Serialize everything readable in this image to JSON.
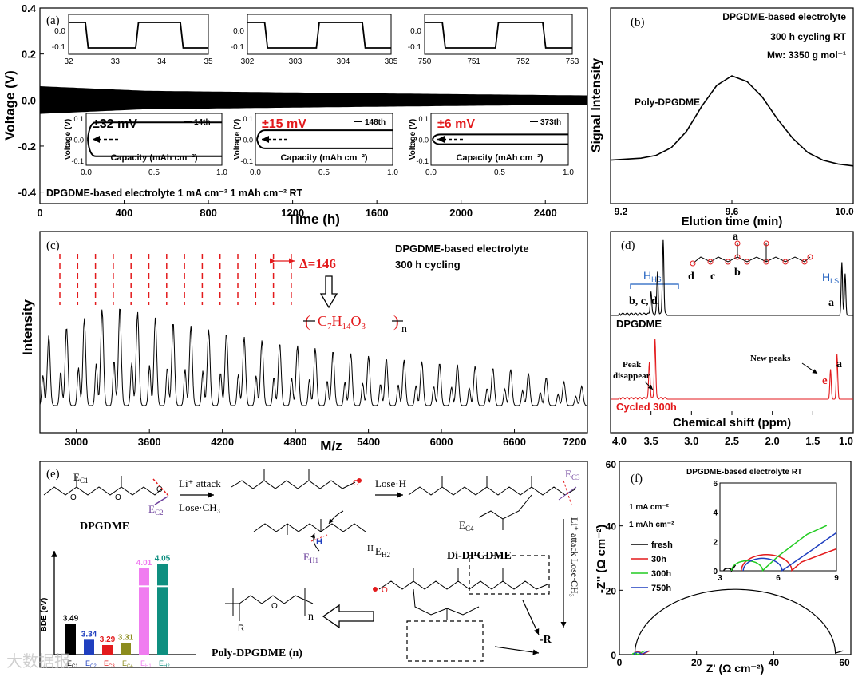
{
  "colors": {
    "black": "#000000",
    "red": "#e31a1c",
    "blue": "#1f3fbf",
    "green": "#22cc22",
    "purple": "#6a3d9a",
    "olive": "#8c8c1e",
    "pink": "#f07cf0",
    "teal": "#0e8f80",
    "gray": "#9a9a9a"
  },
  "chart_data": [
    {
      "id": "a",
      "type": "line",
      "panel_label": "(a)",
      "xlabel": "Time (h)",
      "ylabel": "Voltage (V)",
      "xlim": [
        0,
        2600
      ],
      "ylim": [
        -0.45,
        0.4
      ],
      "xticks": [
        0,
        400,
        800,
        1200,
        1600,
        2000,
        2400
      ],
      "yticks": [
        -0.4,
        -0.2,
        0.0,
        0.2,
        0.4
      ],
      "series": [
        {
          "name": "voltage",
          "band_amplitude": [
            [
              0,
              0.06
            ],
            [
              500,
              0.04
            ],
            [
              1500,
              0.03
            ],
            [
              2600,
              0.02
            ]
          ]
        }
      ],
      "bottom_note": "DPGDME-based electrolyte  1 mA cm⁻² 1 mAh cm⁻² RT",
      "insets_voltage": [
        {
          "xticks": [
            32,
            33,
            34,
            35
          ],
          "yticks": [
            0.0,
            -0.1
          ],
          "ytick_labels": [
            "0.0",
            "-0.1"
          ],
          "top_tick_label": "0.0"
        },
        {
          "xticks": [
            302,
            303,
            304,
            305
          ],
          "yticks": [
            0.0,
            -0.1
          ]
        },
        {
          "xticks": [
            750,
            751,
            752,
            753
          ],
          "yticks": [
            0.0,
            -0.1
          ]
        }
      ],
      "insets_capacity": [
        {
          "overpotential": "±32 mV",
          "overpotential_color": "#000000",
          "cycle": "14th",
          "xlabel": "Capacity (mAh cm⁻²)",
          "ylabel": "Voltage (V)",
          "xticks": [
            0.0,
            0.5,
            1.0
          ],
          "xtick_labels": [
            "0.0",
            "0.5",
            "1.0"
          ],
          "ytick_labels": [
            "0.1",
            "0.0",
            "-0.1"
          ]
        },
        {
          "overpotential": "±15 mV",
          "overpotential_color": "#e31a1c",
          "cycle": "148th",
          "xlabel": "Capacity (mAh cm⁻²)",
          "ylabel": "Voltage (V)",
          "xticks": [
            0.0,
            0.5,
            1.0
          ],
          "xtick_labels": [
            "0.0",
            "0.5",
            "1.0"
          ],
          "ytick_labels": [
            "0.1",
            "0.0",
            "-0.1"
          ]
        },
        {
          "overpotential": "±6 mV",
          "overpotential_color": "#e31a1c",
          "cycle": "373th",
          "xlabel": "Capacity (mAh cm⁻²)",
          "ylabel": "Voltage (V)",
          "xticks": [
            0.0,
            0.5,
            1.0
          ],
          "xtick_labels": [
            "0.0",
            "0.5",
            "1.0"
          ],
          "ytick_labels": [
            "0.1",
            "0.0",
            "-0.1"
          ]
        }
      ]
    },
    {
      "id": "b",
      "type": "line",
      "panel_label": "(b)",
      "xlabel": "Elution time (min)",
      "ylabel": "Signal Intensity",
      "xlim": [
        9.2,
        10.0
      ],
      "xticks": [
        9.2,
        9.6,
        10.0
      ],
      "xtick_labels": [
        "9.2",
        "9.6",
        "10.0"
      ],
      "info": [
        "DPGDME-based electrolyte",
        "300 h cycling RT",
        "Mw: 3350 g mol⁻¹"
      ],
      "peak_label": "Poly-DPGDME",
      "series": [
        {
          "name": "GPC",
          "x": [
            9.2,
            9.3,
            9.35,
            9.4,
            9.45,
            9.5,
            9.55,
            9.6,
            9.65,
            9.7,
            9.75,
            9.8,
            9.85,
            9.9,
            9.95,
            10.0
          ],
          "y": [
            0.12,
            0.14,
            0.17,
            0.25,
            0.42,
            0.68,
            0.9,
            1.0,
            0.94,
            0.78,
            0.55,
            0.35,
            0.2,
            0.12,
            0.08,
            0.06
          ]
        }
      ]
    },
    {
      "id": "c",
      "type": "line",
      "panel_label": "(c)",
      "xlabel": "M/z",
      "ylabel": "Intensity",
      "xlim": [
        2700,
        7200
      ],
      "xticks": [
        3000,
        3600,
        4200,
        4800,
        5400,
        6000,
        6600,
        7200
      ],
      "info": [
        "DPGDME-based electrolyte",
        "300 h cycling"
      ],
      "delta_label": "Δ=146",
      "repeat_unit": "C7H14O3",
      "peak_spacing": 146,
      "series": [
        {
          "name": "MALDI",
          "envelope": [
            [
              2700,
              0.55
            ],
            [
              3300,
              0.85
            ],
            [
              3700,
              0.72
            ],
            [
              4500,
              0.55
            ],
            [
              5500,
              0.4
            ],
            [
              6600,
              0.3
            ],
            [
              7200,
              0.15
            ]
          ]
        }
      ]
    },
    {
      "id": "d",
      "type": "line",
      "panel_label": "(d)",
      "xlabel": "Chemical shift (ppm)",
      "xlim": [
        4.0,
        1.0
      ],
      "xticks": [
        4.0,
        3.5,
        3.0,
        2.5,
        2.0,
        1.5,
        1.0
      ],
      "xtick_labels": [
        "4.0",
        "3.5",
        "3.0",
        "2.5",
        "2.0",
        "1.5",
        "1.0"
      ],
      "series": [
        {
          "name": "DPGDME",
          "color": "#000000",
          "peaks": [
            {
              "ppm": 3.35,
              "h": 1.0
            },
            {
              "ppm": 3.42,
              "h": 0.55
            },
            {
              "ppm": 3.5,
              "h": 0.3
            },
            {
              "ppm": 1.14,
              "h": 0.7
            },
            {
              "ppm": 1.1,
              "h": 0.55
            }
          ]
        },
        {
          "name": "Cycled 300h",
          "color": "#e31a1c",
          "peaks": [
            {
              "ppm": 3.45,
              "h": 1.0
            },
            {
              "ppm": 3.52,
              "h": 0.6
            },
            {
              "ppm": 1.2,
              "h": 0.75
            },
            {
              "ppm": 1.28,
              "h": 0.5
            }
          ]
        }
      ],
      "labels": {
        "hhs": "HHS",
        "hls": "HLS",
        "bcd": "b, c, d",
        "a": "a",
        "peak_disappear": "Peak\ndisappear",
        "new_peaks": "New peaks",
        "e": "e",
        "struct_a": "a",
        "struct_b": "b",
        "struct_c": "c",
        "struct_d": "d"
      }
    },
    {
      "id": "e_bde",
      "type": "bar",
      "ylabel": "BDE (eV)",
      "categories": [
        "EC1",
        "EC2",
        "EC3",
        "EC4",
        "EH1",
        "EH2"
      ],
      "category_labels": [
        [
          "E",
          "C1"
        ],
        [
          "E",
          "C2"
        ],
        [
          "E",
          "C3"
        ],
        [
          "E",
          "C4"
        ],
        [
          "E",
          "H1"
        ],
        [
          "E",
          "H2"
        ]
      ],
      "values": [
        3.49,
        3.34,
        3.29,
        3.31,
        4.01,
        4.05
      ],
      "value_labels": [
        "3.49",
        "3.34",
        "3.29",
        "3.31",
        "4.01",
        "4.05"
      ],
      "bar_colors": [
        "#000000",
        "#1f3fbf",
        "#e31a1c",
        "#8c8c1e",
        "#f07cf0",
        "#0e8f80"
      ],
      "ylim": [
        3.2,
        4.1
      ]
    },
    {
      "id": "f",
      "type": "line",
      "panel_label": "(f)",
      "xlabel": "Z' (Ω cm⁻²)",
      "ylabel": "-Z'' (Ω cm⁻²)",
      "xlim": [
        0,
        60
      ],
      "ylim": [
        0,
        60
      ],
      "xticks": [
        0,
        20,
        40,
        60
      ],
      "yticks": [
        0,
        20,
        40,
        60
      ],
      "title": "DPGDME-based electrolyte  RT",
      "conditions": [
        "1 mA cm⁻²",
        "1 mAh cm⁻²"
      ],
      "legend": [
        "fresh",
        "30h",
        "300h",
        "750h"
      ],
      "series": [
        {
          "name": "fresh",
          "color": "#000000",
          "center": 30,
          "radius": 26,
          "start": 4
        },
        {
          "name": "30h",
          "color": "#e31a1c",
          "center": 4.8,
          "radius": 1.1,
          "start": 3.7
        },
        {
          "name": "300h",
          "color": "#22cc22",
          "center": 4.0,
          "radius": 0.6,
          "start": 3.4
        },
        {
          "name": "750h",
          "color": "#1f3fbf",
          "center": 4.7,
          "radius": 0.9,
          "start": 3.8
        }
      ],
      "inset": {
        "xlim": [
          3,
          9
        ],
        "ylim": [
          0,
          6
        ],
        "xticks": [
          3,
          6,
          9
        ],
        "yticks": [
          0,
          2,
          4,
          6
        ]
      }
    }
  ],
  "panel_e": {
    "label": "(e)",
    "dpgdme": "DPGDME",
    "di_dpgdme": "Di-DPGDME",
    "poly": "Poly-DPGDME (n)",
    "li_attack": "Li⁺ attack",
    "lose_ch3": "Lose·CH₃",
    "lose_h": "Lose·H",
    "li_attack_v": "Li⁺ attack  Lose·CH₃",
    "minus_r": "-R",
    "r": "R",
    "n": "n",
    "ec1": "E",
    "ec1_sub": "C1",
    "ec2": "E",
    "ec2_sub": "C2",
    "ec3": "E",
    "ec3_sub": "C3",
    "ec4": "E",
    "ec4_sub": "C4",
    "eh1": "E",
    "eh1_sub": "H1",
    "eh2": "E",
    "eh2_sub": "H2",
    "h": "H",
    "o": "O"
  },
  "watermark": "大数据报"
}
